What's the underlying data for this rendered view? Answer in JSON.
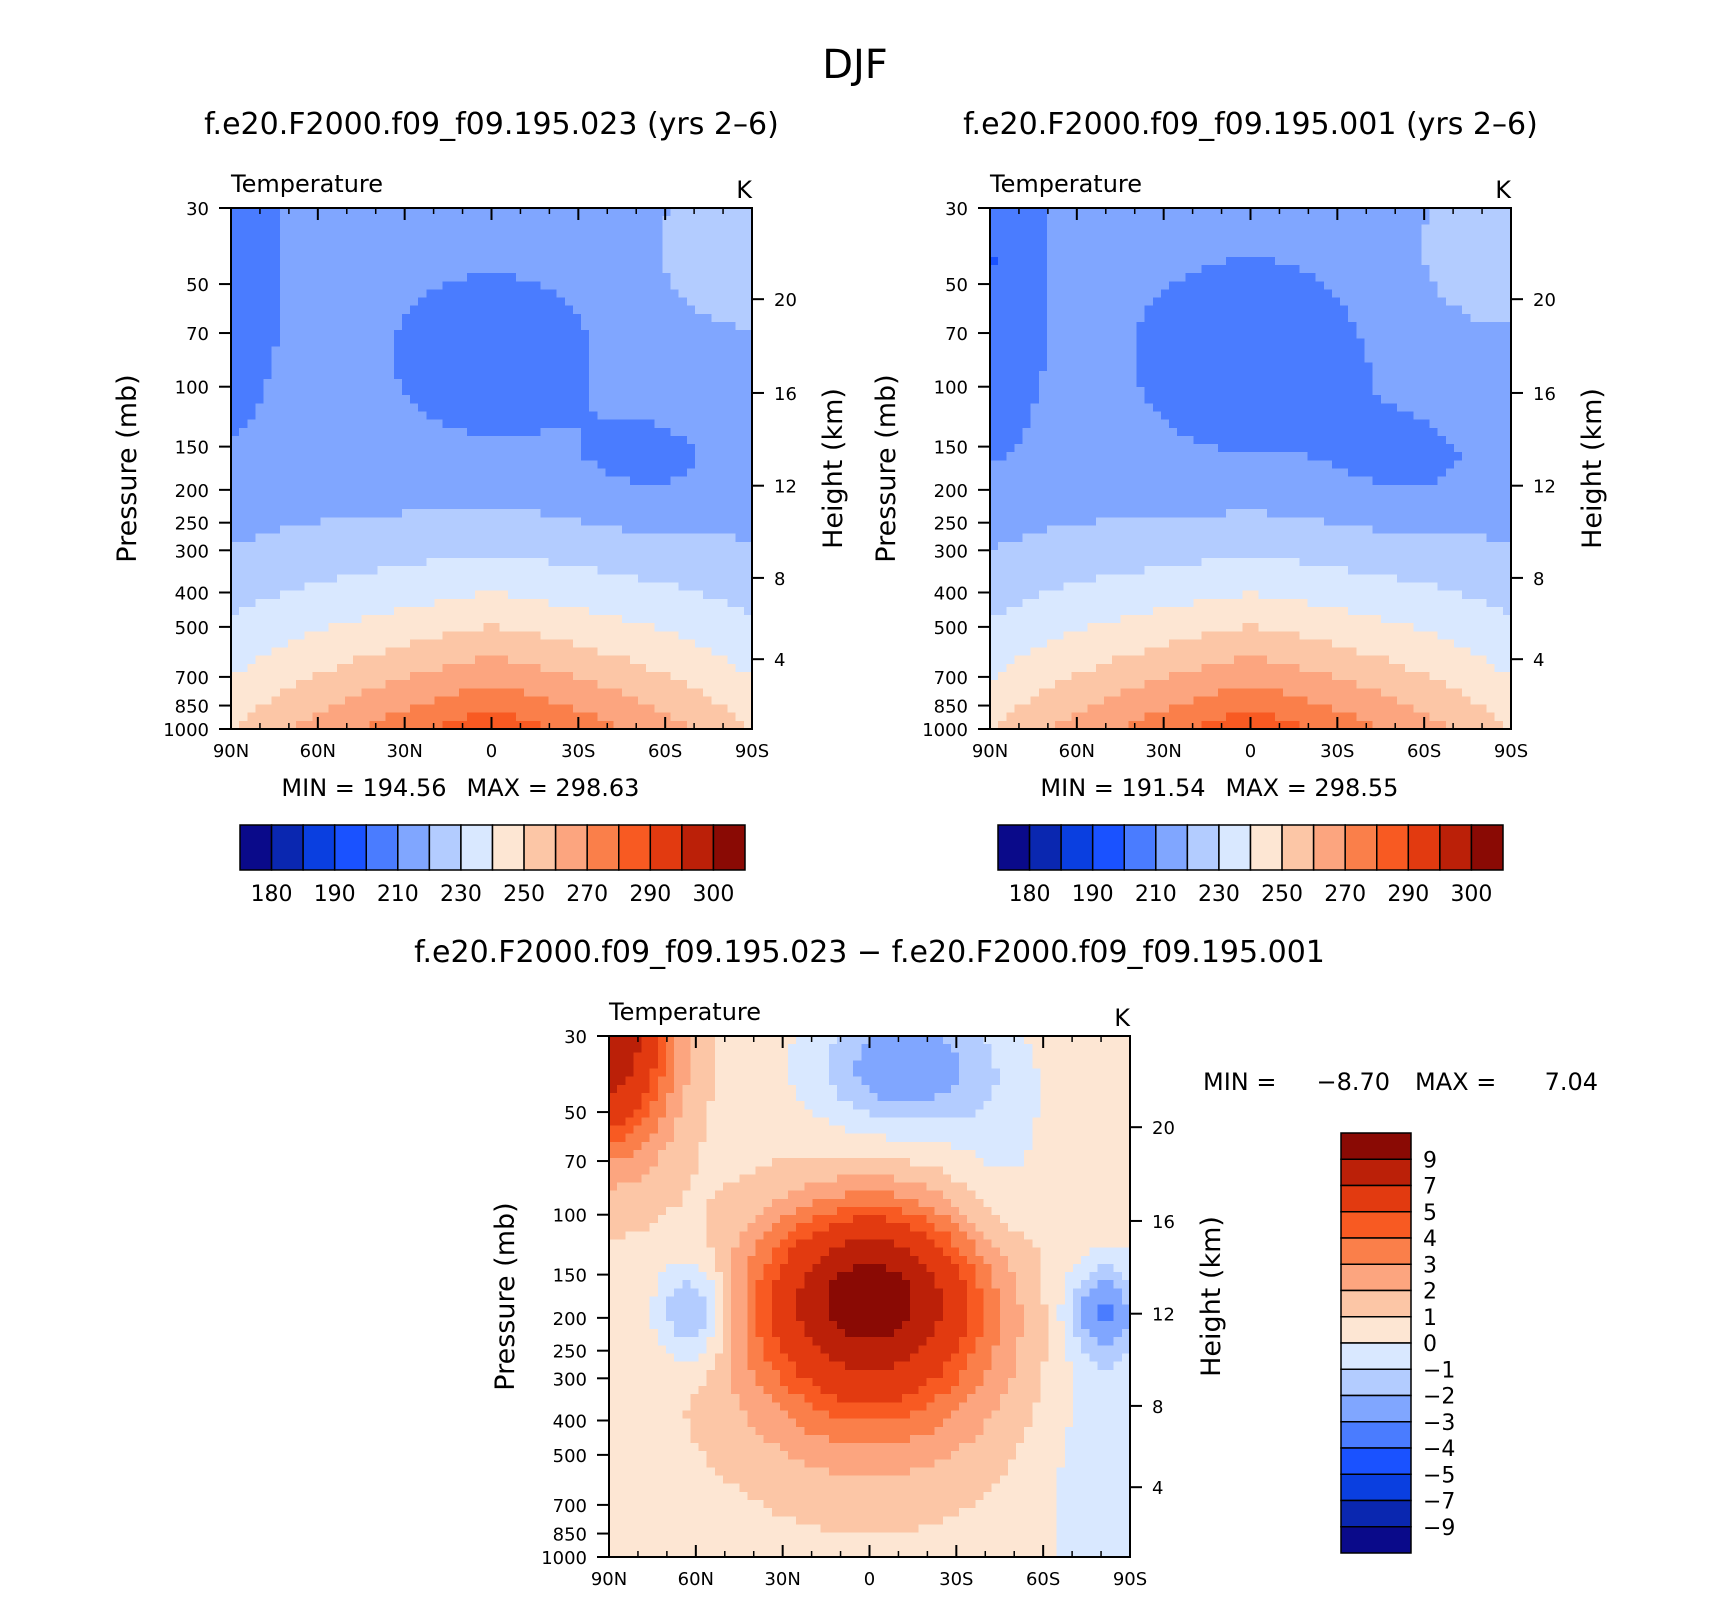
{
  "figure": {
    "title": "DJF"
  },
  "palette": {
    "blues": [
      "#0a0a8a",
      "#0a27b0",
      "#0a3fe0",
      "#1a52ff",
      "#4a7cff",
      "#80a6ff",
      "#b3ccff",
      "#d9e8ff"
    ],
    "reds": [
      "#fde6d3",
      "#fcc6a6",
      "#fca57f",
      "#fa7f4a",
      "#f85a22",
      "#e23a10",
      "#bb2008",
      "#8a0a04"
    ]
  },
  "chart_data": [
    {
      "type": "heatmap",
      "title": "f.e20.F2000.f09_f09.195.023 (yrs 2–6)",
      "variable": "Temperature",
      "units": "K",
      "ylabel": "Pressure (mb)",
      "ylabel_right": "Height (km)",
      "x_ticks": [
        "90N",
        "60N",
        "30N",
        "0",
        "30S",
        "60S",
        "90S"
      ],
      "y_ticks": [
        "30",
        "50",
        "70",
        "100",
        "150",
        "200",
        "250",
        "300",
        "400",
        "500",
        "700",
        "850",
        "1000"
      ],
      "y_right_ticks": [
        "20",
        "16",
        "12",
        "8",
        "4"
      ],
      "min_label": "MIN = 194.56",
      "max_label": "MAX = 298.63",
      "min": 194.56,
      "max": 298.63,
      "levels": [
        175,
        180,
        185,
        190,
        200,
        210,
        220,
        230,
        240,
        250,
        260,
        270,
        280,
        290,
        295,
        300,
        305
      ],
      "colorbar_labels": [
        "180",
        "190",
        "210",
        "230",
        "250",
        "270",
        "290",
        "300"
      ]
    },
    {
      "type": "heatmap",
      "title": "f.e20.F2000.f09_f09.195.001 (yrs 2–6)",
      "variable": "Temperature",
      "units": "K",
      "ylabel": "Pressure (mb)",
      "ylabel_right": "Height (km)",
      "x_ticks": [
        "90N",
        "60N",
        "30N",
        "0",
        "30S",
        "60S",
        "90S"
      ],
      "y_ticks": [
        "30",
        "50",
        "70",
        "100",
        "150",
        "200",
        "250",
        "300",
        "400",
        "500",
        "700",
        "850",
        "1000"
      ],
      "y_right_ticks": [
        "20",
        "16",
        "12",
        "8",
        "4"
      ],
      "min_label": "MIN = 191.54",
      "max_label": "MAX = 298.55",
      "min": 191.54,
      "max": 298.55,
      "levels": [
        175,
        180,
        185,
        190,
        200,
        210,
        220,
        230,
        240,
        250,
        260,
        270,
        280,
        290,
        295,
        300,
        305
      ],
      "colorbar_labels": [
        "180",
        "190",
        "210",
        "230",
        "250",
        "270",
        "290",
        "300"
      ]
    },
    {
      "type": "heatmap",
      "title": "f.e20.F2000.f09_f09.195.023 − f.e20.F2000.f09_f09.195.001",
      "variable": "Temperature",
      "units": "K",
      "ylabel": "Pressure (mb)",
      "ylabel_right": "Height (km)",
      "x_ticks": [
        "90N",
        "60N",
        "30N",
        "0",
        "30S",
        "60S",
        "90S"
      ],
      "y_ticks": [
        "30",
        "50",
        "70",
        "100",
        "150",
        "200",
        "250",
        "300",
        "400",
        "500",
        "700",
        "850",
        "1000"
      ],
      "y_right_ticks": [
        "20",
        "16",
        "12",
        "8",
        "4"
      ],
      "min_label": "MIN =",
      "min_value": "−8.70",
      "max_label": "MAX =",
      "max_value": "7.04",
      "min": -8.7,
      "max": 7.04,
      "levels": [
        -11,
        -9,
        -7,
        -5,
        -4,
        -3,
        -2,
        -1,
        0,
        1,
        2,
        3,
        4,
        5,
        7,
        9,
        11
      ],
      "colorbar_labels": [
        "9",
        "7",
        "5",
        "4",
        "3",
        "2",
        "1",
        "0",
        "−1",
        "−2",
        "−3",
        "−4",
        "−5",
        "−7",
        "−9"
      ]
    }
  ]
}
